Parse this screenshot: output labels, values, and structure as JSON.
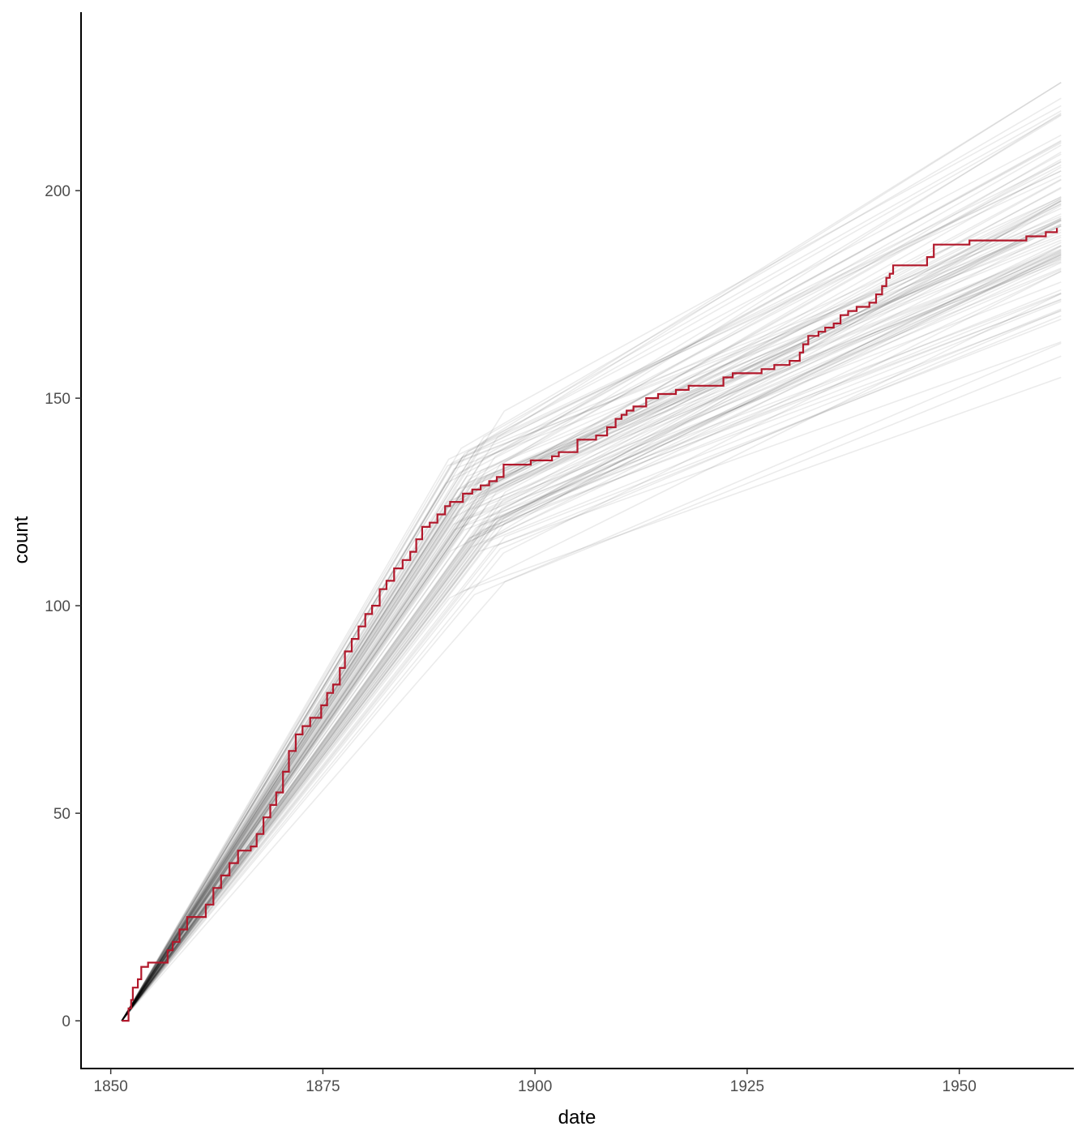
{
  "chart_data": {
    "type": "line",
    "title": "",
    "xlabel": "date",
    "ylabel": "count",
    "xlim": [
      1846.5,
      1963.5
    ],
    "ylim": [
      -11.5,
      243
    ],
    "x_ticks": [
      1850,
      1875,
      1900,
      1925,
      1950
    ],
    "y_ticks": [
      0,
      50,
      100,
      150,
      200
    ],
    "grid": false,
    "legend": "none",
    "colors": {
      "observed": "#b2182b",
      "simulated": "#000000",
      "axis": "#000000",
      "tick_label": "#4d4d4d"
    },
    "observed_series": {
      "line_style": "step",
      "points": [
        [
          1851.3,
          0
        ],
        [
          1852.1,
          3
        ],
        [
          1852.4,
          5
        ],
        [
          1852.6,
          8
        ],
        [
          1853.2,
          10
        ],
        [
          1853.6,
          13
        ],
        [
          1854.4,
          14
        ],
        [
          1856.2,
          14
        ],
        [
          1856.7,
          17
        ],
        [
          1857.3,
          19
        ],
        [
          1858.1,
          22
        ],
        [
          1859.0,
          25
        ],
        [
          1860.5,
          25
        ],
        [
          1861.2,
          28
        ],
        [
          1862.1,
          32
        ],
        [
          1863.0,
          35
        ],
        [
          1864.0,
          38
        ],
        [
          1865.0,
          41
        ],
        [
          1866.5,
          42
        ],
        [
          1867.2,
          45
        ],
        [
          1868.0,
          49
        ],
        [
          1868.8,
          52
        ],
        [
          1869.5,
          55
        ],
        [
          1870.3,
          60
        ],
        [
          1871.0,
          65
        ],
        [
          1871.8,
          69
        ],
        [
          1872.6,
          71
        ],
        [
          1873.5,
          73
        ],
        [
          1874.8,
          76
        ],
        [
          1875.5,
          79
        ],
        [
          1876.2,
          81
        ],
        [
          1877.0,
          85
        ],
        [
          1877.6,
          89
        ],
        [
          1878.4,
          92
        ],
        [
          1879.2,
          95
        ],
        [
          1880.0,
          98
        ],
        [
          1880.8,
          100
        ],
        [
          1881.7,
          104
        ],
        [
          1882.5,
          106
        ],
        [
          1883.4,
          109
        ],
        [
          1884.4,
          111
        ],
        [
          1885.3,
          113
        ],
        [
          1886.0,
          116
        ],
        [
          1886.7,
          119
        ],
        [
          1887.6,
          120
        ],
        [
          1888.5,
          122
        ],
        [
          1889.4,
          124
        ],
        [
          1890.0,
          125
        ],
        [
          1891.5,
          127
        ],
        [
          1892.6,
          128
        ],
        [
          1893.6,
          129
        ],
        [
          1894.6,
          130
        ],
        [
          1895.5,
          131
        ],
        [
          1896.3,
          134
        ],
        [
          1899.5,
          135
        ],
        [
          1902.0,
          136
        ],
        [
          1902.8,
          137
        ],
        [
          1905.0,
          140
        ],
        [
          1907.2,
          141
        ],
        [
          1908.5,
          143
        ],
        [
          1909.5,
          145
        ],
        [
          1910.2,
          146
        ],
        [
          1910.8,
          147
        ],
        [
          1911.6,
          148
        ],
        [
          1913.1,
          150
        ],
        [
          1914.5,
          151
        ],
        [
          1916.6,
          152
        ],
        [
          1918.1,
          153
        ],
        [
          1922.2,
          155
        ],
        [
          1923.3,
          156
        ],
        [
          1926.7,
          157
        ],
        [
          1928.2,
          158
        ],
        [
          1930.0,
          159
        ],
        [
          1931.2,
          161
        ],
        [
          1931.6,
          163
        ],
        [
          1932.2,
          165
        ],
        [
          1933.4,
          166
        ],
        [
          1934.2,
          167
        ],
        [
          1935.2,
          168
        ],
        [
          1936.0,
          170
        ],
        [
          1936.9,
          171
        ],
        [
          1937.9,
          172
        ],
        [
          1939.4,
          173
        ],
        [
          1940.2,
          175
        ],
        [
          1940.9,
          177
        ],
        [
          1941.4,
          179
        ],
        [
          1941.8,
          180
        ],
        [
          1942.2,
          182
        ],
        [
          1946.2,
          184
        ],
        [
          1947.0,
          187
        ],
        [
          1948.0,
          187
        ],
        [
          1951.2,
          188
        ],
        [
          1957.9,
          189
        ],
        [
          1960.2,
          190
        ],
        [
          1961.5,
          191
        ]
      ]
    },
    "simulated_series": {
      "count": 100,
      "description": "100 simulated cumulative count trajectories",
      "start": [
        1851.3,
        0
      ],
      "breakpoint_date_range": [
        1889.5,
        1896.5
      ],
      "breakpoint_count_range": [
        95,
        154
      ],
      "end_date": 1962.0,
      "end_count_range": [
        155,
        231
      ],
      "opacity": 0.08
    }
  }
}
